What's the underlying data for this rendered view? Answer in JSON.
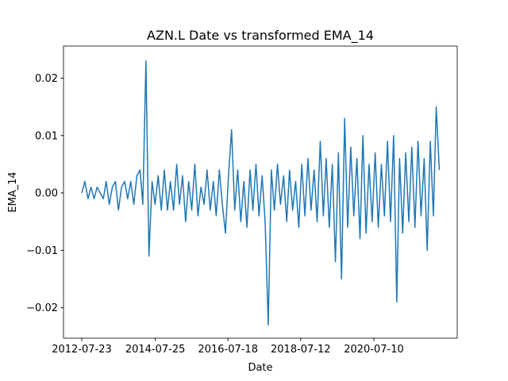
{
  "chart_data": {
    "type": "line",
    "title": "AZN.L Date vs transformed EMA_14",
    "x_label": "Date",
    "y_label": "EMA_14",
    "xlim": [
      "2012-01-23",
      "2022-10-18"
    ],
    "xticks": [
      "2012-07-23",
      "2014-07-25",
      "2016-07-18",
      "2018-07-12",
      "2020-07-10"
    ],
    "ylim": [
      -0.0253,
      0.0256
    ],
    "yticks": [
      {
        "value": -0.02,
        "label": "−0.02"
      },
      {
        "value": -0.01,
        "label": "−0.01"
      },
      {
        "value": 0,
        "label": "0.00"
      },
      {
        "value": 0.01,
        "label": "0.01"
      },
      {
        "value": 0.02,
        "label": "0.02"
      }
    ],
    "grid": false,
    "series": [
      {
        "name": "EMA_14",
        "color": "#1f77b4",
        "x": [
          "2012-07-23",
          "2012-08-23",
          "2012-09-23",
          "2012-10-23",
          "2012-11-23",
          "2012-12-23",
          "2013-01-23",
          "2013-02-23",
          "2013-03-23",
          "2013-04-23",
          "2013-05-23",
          "2013-06-23",
          "2013-07-23",
          "2013-08-23",
          "2013-09-23",
          "2013-10-23",
          "2013-11-23",
          "2013-12-23",
          "2014-01-23",
          "2014-02-23",
          "2014-03-23",
          "2014-04-23",
          "2014-05-23",
          "2014-06-23",
          "2014-07-23",
          "2014-08-23",
          "2014-09-23",
          "2014-10-23",
          "2014-11-23",
          "2014-12-23",
          "2015-01-23",
          "2015-02-23",
          "2015-03-23",
          "2015-04-23",
          "2015-05-23",
          "2015-06-23",
          "2015-07-23",
          "2015-08-23",
          "2015-09-23",
          "2015-10-23",
          "2015-11-23",
          "2015-12-23",
          "2016-01-23",
          "2016-02-23",
          "2016-03-23",
          "2016-04-23",
          "2016-05-23",
          "2016-06-23",
          "2016-07-23",
          "2016-08-23",
          "2016-09-23",
          "2016-10-23",
          "2016-11-23",
          "2016-12-23",
          "2017-01-23",
          "2017-02-23",
          "2017-03-23",
          "2017-04-23",
          "2017-05-23",
          "2017-06-23",
          "2017-07-23",
          "2017-08-23",
          "2017-09-23",
          "2017-10-23",
          "2017-11-23",
          "2017-12-23",
          "2018-01-23",
          "2018-02-23",
          "2018-03-23",
          "2018-04-23",
          "2018-05-23",
          "2018-06-23",
          "2018-07-23",
          "2018-08-23",
          "2018-09-23",
          "2018-10-23",
          "2018-11-23",
          "2018-12-23",
          "2019-01-23",
          "2019-02-23",
          "2019-03-23",
          "2019-04-23",
          "2019-05-23",
          "2019-06-23",
          "2019-07-23",
          "2019-08-23",
          "2019-09-23",
          "2019-10-23",
          "2019-11-23",
          "2019-12-23",
          "2020-01-23",
          "2020-02-23",
          "2020-03-23",
          "2020-04-23",
          "2020-05-23",
          "2020-06-23",
          "2020-07-23",
          "2020-08-23",
          "2020-09-23",
          "2020-10-23",
          "2020-11-23",
          "2020-12-23",
          "2021-01-23",
          "2021-02-23",
          "2021-03-23",
          "2021-04-23",
          "2021-05-23",
          "2021-06-23",
          "2021-07-23",
          "2021-08-23",
          "2021-09-23",
          "2021-10-23",
          "2021-11-23",
          "2021-12-23",
          "2022-01-23",
          "2022-02-23",
          "2022-03-23",
          "2022-04-23"
        ],
        "values": [
          0.0,
          0.002,
          -0.001,
          0.001,
          -0.001,
          0.001,
          0.0,
          -0.001,
          0.002,
          -0.002,
          0.001,
          0.002,
          -0.003,
          0.001,
          0.002,
          -0.001,
          0.002,
          -0.002,
          0.003,
          0.004,
          -0.002,
          0.023,
          -0.011,
          0.002,
          -0.002,
          0.003,
          -0.003,
          0.004,
          -0.003,
          0.002,
          -0.003,
          0.005,
          -0.002,
          0.003,
          -0.005,
          0.002,
          -0.003,
          0.005,
          -0.004,
          0.001,
          -0.002,
          0.004,
          -0.003,
          0.002,
          -0.004,
          0.004,
          -0.002,
          -0.007,
          0.003,
          0.011,
          -0.003,
          0.004,
          -0.005,
          0.002,
          -0.006,
          0.004,
          -0.003,
          0.005,
          -0.004,
          0.003,
          -0.005,
          -0.023,
          0.004,
          -0.003,
          0.005,
          -0.002,
          0.003,
          -0.005,
          0.004,
          -0.003,
          0.002,
          -0.006,
          0.005,
          -0.004,
          0.006,
          -0.003,
          0.004,
          -0.005,
          0.009,
          -0.004,
          0.006,
          -0.006,
          0.005,
          -0.012,
          0.007,
          -0.015,
          0.013,
          -0.006,
          0.008,
          -0.004,
          0.006,
          -0.008,
          0.01,
          -0.007,
          0.005,
          -0.005,
          0.007,
          -0.006,
          0.005,
          -0.004,
          0.009,
          -0.005,
          0.01,
          -0.019,
          0.006,
          -0.007,
          0.007,
          -0.005,
          0.008,
          -0.006,
          0.009,
          -0.004,
          0.006,
          -0.01,
          0.009,
          -0.004,
          0.015,
          0.004
        ]
      }
    ]
  }
}
